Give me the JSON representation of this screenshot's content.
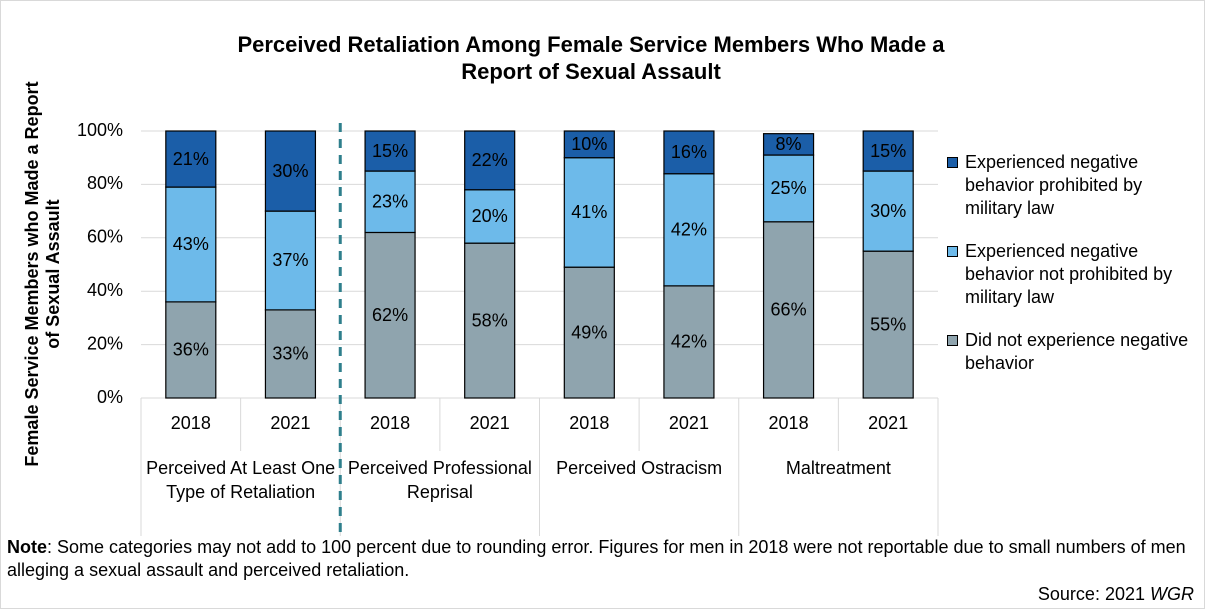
{
  "chart_data": {
    "type": "stacked_bar",
    "title": "Perceived Retaliation Among Female Service Members Who Made a Report of Sexual Assault",
    "ylabel": "Female Service Members who Made a Report of Sexual Assault",
    "categories": [
      "2018",
      "2021",
      "2018",
      "2021",
      "2018",
      "2021",
      "2018",
      "2021"
    ],
    "groups": [
      "Perceived At Least One Type of Retaliation",
      "Perceived Professional Reprisal",
      "Perceived Ostracism",
      "Maltreatment"
    ],
    "series": [
      {
        "name": "Did not experience negative behavior",
        "color": "#8fa4ae",
        "values": [
          36,
          33,
          62,
          58,
          49,
          42,
          66,
          55
        ],
        "value_labels": [
          "36%",
          "33%",
          "62%",
          "58%",
          "49%",
          "42%",
          "66%",
          "55%"
        ]
      },
      {
        "name": "Experienced negative behavior not prohibited by military law",
        "color": "#6dbaea",
        "values": [
          43,
          37,
          23,
          20,
          41,
          42,
          25,
          30
        ],
        "value_labels": [
          "43%",
          "37%",
          "23%",
          "20%",
          "41%",
          "42%",
          "25%",
          "30%"
        ]
      },
      {
        "name": "Experienced negative behavior prohibited by military law",
        "color": "#1b5ea8",
        "values": [
          21,
          30,
          15,
          22,
          10,
          16,
          8,
          15
        ],
        "value_labels": [
          "21%",
          "30%",
          "15%",
          "22%",
          "10%",
          "16%",
          "8%",
          "15%"
        ]
      }
    ],
    "ylim": [
      0,
      100
    ],
    "yticks": [
      {
        "value": 0,
        "label": "0%"
      },
      {
        "value": 20,
        "label": "20%"
      },
      {
        "value": 40,
        "label": "40%"
      },
      {
        "value": 60,
        "label": "60%"
      },
      {
        "value": 80,
        "label": "80%"
      },
      {
        "value": 100,
        "label": "100%"
      }
    ],
    "grid": true,
    "legend": "right",
    "note_label": "Note",
    "note": ": Some categories may not add to 100 percent due to rounding error. Figures for men in 2018 were not reportable due to small numbers of men alleging a sexual assault and perceived retaliation.",
    "source": "Source: 2021",
    "source_emphasis": "WGR"
  }
}
